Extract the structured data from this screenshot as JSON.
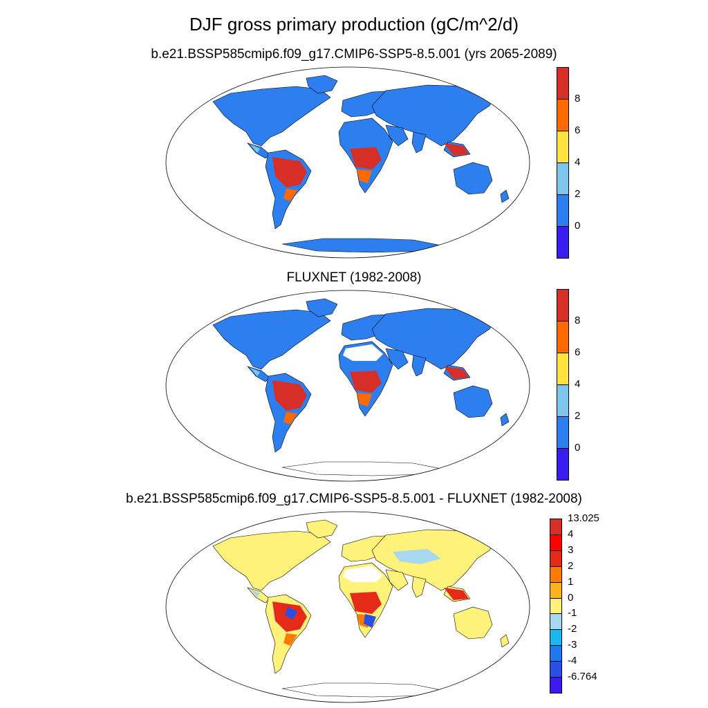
{
  "figure": {
    "title": "DJF gross primary production (gC/m^2/d)"
  },
  "panels": [
    {
      "subtitle": "b.e21.BSSP585cmip6.f09_g17.CMIP6-SSP5-8.5.001 (yrs 2065-2089)",
      "colorbar": {
        "colors": [
          "#d62f27",
          "#ff6a00",
          "#ffe23d",
          "#7ec5ee",
          "#2d7ff0",
          "#3a1cf0"
        ],
        "labels": [
          "8",
          "6",
          "4",
          "2",
          "0"
        ]
      }
    },
    {
      "subtitle": "FLUXNET (1982-2008)",
      "colorbar": {
        "colors": [
          "#d62f27",
          "#ff6a00",
          "#ffe23d",
          "#7ec5ee",
          "#2d7ff0",
          "#3a1cf0"
        ],
        "labels": [
          "8",
          "6",
          "4",
          "2",
          "0"
        ]
      }
    },
    {
      "subtitle": "b.e21.BSSP585cmip6.f09_g17.CMIP6-SSP5-8.5.001 - FLUXNET (1982-2008)",
      "colorbar": {
        "colors": [
          "#d62f27",
          "#ff0000",
          "#e62a1a",
          "#ff7a00",
          "#ffb21a",
          "#fff27a",
          "#a8d8f0",
          "#19b8f0",
          "#1f78ee",
          "#2a4ee6",
          "#3a1cf0"
        ],
        "labels": [
          "13.025",
          "4",
          "3",
          "2",
          "1",
          "0",
          "-1",
          "-2",
          "-3",
          "-4",
          "-6.764"
        ]
      }
    }
  ]
}
